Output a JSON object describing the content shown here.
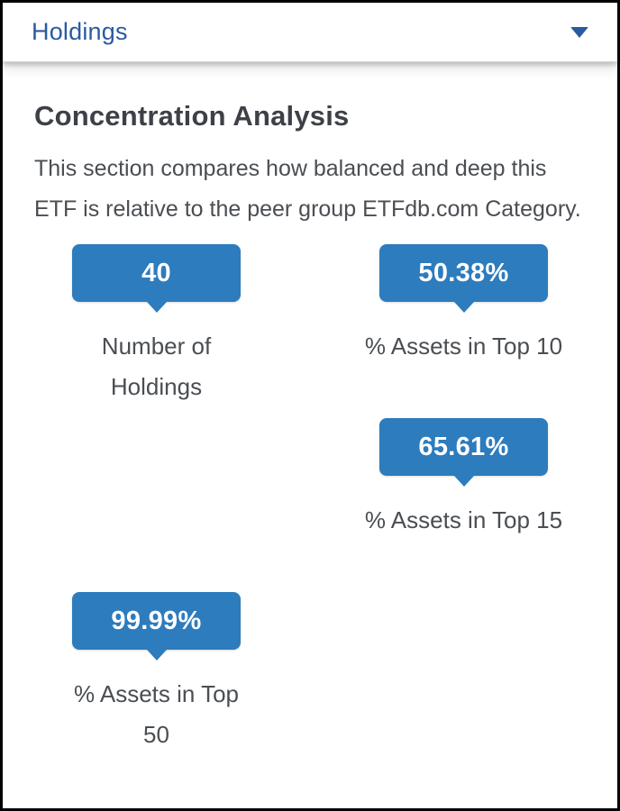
{
  "header": {
    "title": "Holdings",
    "chevron_icon": "chevron-down"
  },
  "section": {
    "title": "Concentration Analysis",
    "description": "This section compares how balanced and deep this ETF is relative to the peer group ETFdb.com Category."
  },
  "stats": [
    {
      "value": "40",
      "label": "Number of Holdings",
      "label_lines": [
        "Number of",
        "Holdings"
      ]
    },
    {
      "value": "50.38%",
      "label": "% Assets in Top 10",
      "label_lines": [
        "% Assets in Top 10"
      ]
    },
    {
      "value": "65.61%",
      "label": "% Assets in Top 15",
      "label_lines": [
        "% Assets in Top 15"
      ]
    },
    {
      "value": "99.99%",
      "label": "% Assets in Top 50",
      "label_lines": [
        "% Assets in Top",
        "50"
      ]
    }
  ],
  "colors": {
    "badge_blue": "#2d7cbd",
    "header_blue": "#2b5aa0",
    "heading_text": "#3d4147",
    "body_text": "#4a4e53"
  }
}
